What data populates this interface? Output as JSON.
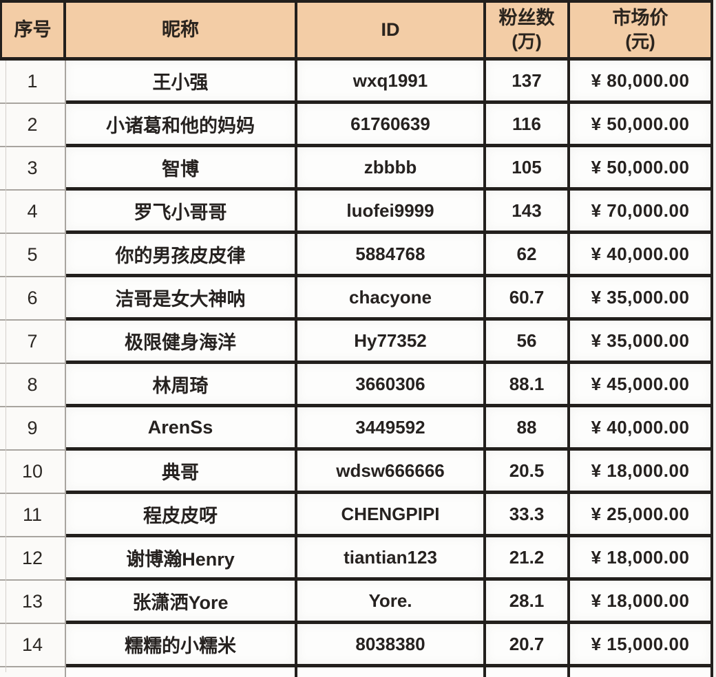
{
  "colors": {
    "header_bg": "#f3cda6",
    "border_dark": "#221f1c",
    "index_rule_gray": "#a8a49f",
    "cell_bg": "#fdfdfc"
  },
  "chart_data": {
    "type": "table",
    "title": "",
    "columns": [
      "序号",
      "昵称",
      "ID",
      "粉丝数(万)",
      "市场价(元)"
    ],
    "header": {
      "col_index": "序号",
      "col_nickname": "昵称",
      "col_id": "ID",
      "col_fans_line1": "粉丝数",
      "col_fans_line2": "(万)",
      "col_price_line1": "市场价",
      "col_price_line2": "(元)"
    },
    "rows": [
      {
        "index": "1",
        "nickname": "王小强",
        "id": "wxq1991",
        "fans": "137",
        "price": "¥ 80,000.00"
      },
      {
        "index": "2",
        "nickname": "小诸葛和他的妈妈",
        "id": "61760639",
        "fans": "116",
        "price": "¥ 50,000.00"
      },
      {
        "index": "3",
        "nickname": "智博",
        "id": "zbbbb",
        "fans": "105",
        "price": "¥ 50,000.00"
      },
      {
        "index": "4",
        "nickname": "罗飞小哥哥",
        "id": "luofei9999",
        "fans": "143",
        "price": "¥ 70,000.00"
      },
      {
        "index": "5",
        "nickname": "你的男孩皮皮律",
        "id": "5884768",
        "fans": "62",
        "price": "¥ 40,000.00"
      },
      {
        "index": "6",
        "nickname": "洁哥是女大神呐",
        "id": "chacyone",
        "fans": "60.7",
        "price": "¥ 35,000.00"
      },
      {
        "index": "7",
        "nickname": "极限健身海洋",
        "id": "Hy77352",
        "fans": "56",
        "price": "¥ 35,000.00"
      },
      {
        "index": "8",
        "nickname": "林周琦",
        "id": "3660306",
        "fans": "88.1",
        "price": "¥ 45,000.00"
      },
      {
        "index": "9",
        "nickname": "ArenSs",
        "id": "3449592",
        "fans": "88",
        "price": "¥ 40,000.00"
      },
      {
        "index": "10",
        "nickname": "典哥",
        "id": "wdsw666666",
        "fans": "20.5",
        "price": "¥ 18,000.00"
      },
      {
        "index": "11",
        "nickname": "程皮皮呀",
        "id": "CHENGPIPI",
        "fans": "33.3",
        "price": "¥ 25,000.00"
      },
      {
        "index": "12",
        "nickname": "谢博瀚Henry",
        "id": "tiantian123",
        "fans": "21.2",
        "price": "¥ 18,000.00"
      },
      {
        "index": "13",
        "nickname": "张潇洒Yore",
        "id": "Yore.",
        "fans": "28.1",
        "price": "¥ 18,000.00"
      },
      {
        "index": "14",
        "nickname": "糯糯的小糯米",
        "id": "8038380",
        "fans": "20.7",
        "price": "¥ 15,000.00"
      }
    ]
  }
}
